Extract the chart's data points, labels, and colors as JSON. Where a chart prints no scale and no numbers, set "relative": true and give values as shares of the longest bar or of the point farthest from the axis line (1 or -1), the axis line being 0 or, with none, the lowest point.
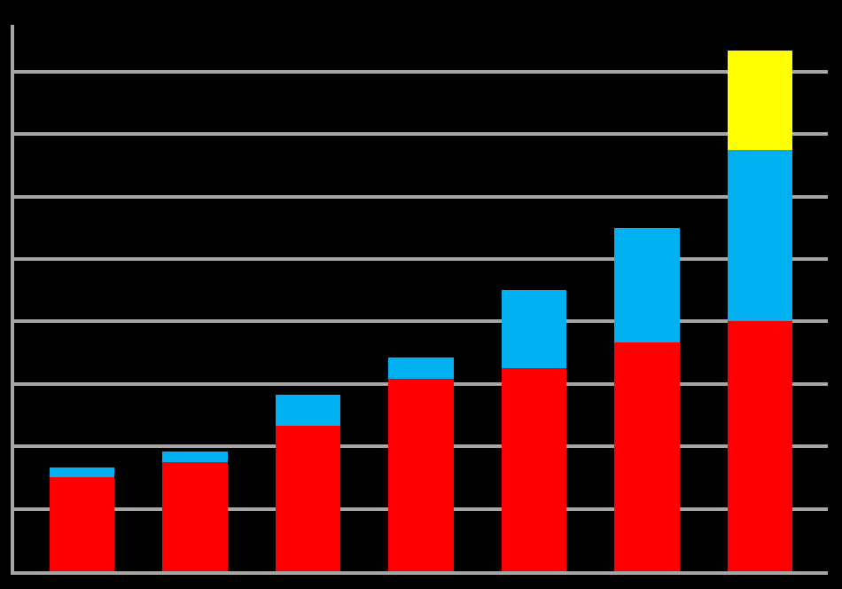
{
  "chart_data": {
    "type": "bar",
    "relative": true,
    "stacked": true,
    "grid": "y",
    "categories": [
      null,
      null,
      null,
      null,
      null,
      null,
      null
    ],
    "series": [
      {
        "color": "#ff0000",
        "values": [
          0.18,
          0.21,
          0.28,
          0.37,
          0.39,
          0.44,
          0.48
        ]
      },
      {
        "color": "#00b0f0",
        "values": [
          0.02,
          0.02,
          0.06,
          0.04,
          0.15,
          0.22,
          0.33
        ]
      },
      {
        "color": "#ffff00",
        "values": [
          null,
          null,
          null,
          null,
          null,
          null,
          0.19
        ]
      }
    ]
  }
}
